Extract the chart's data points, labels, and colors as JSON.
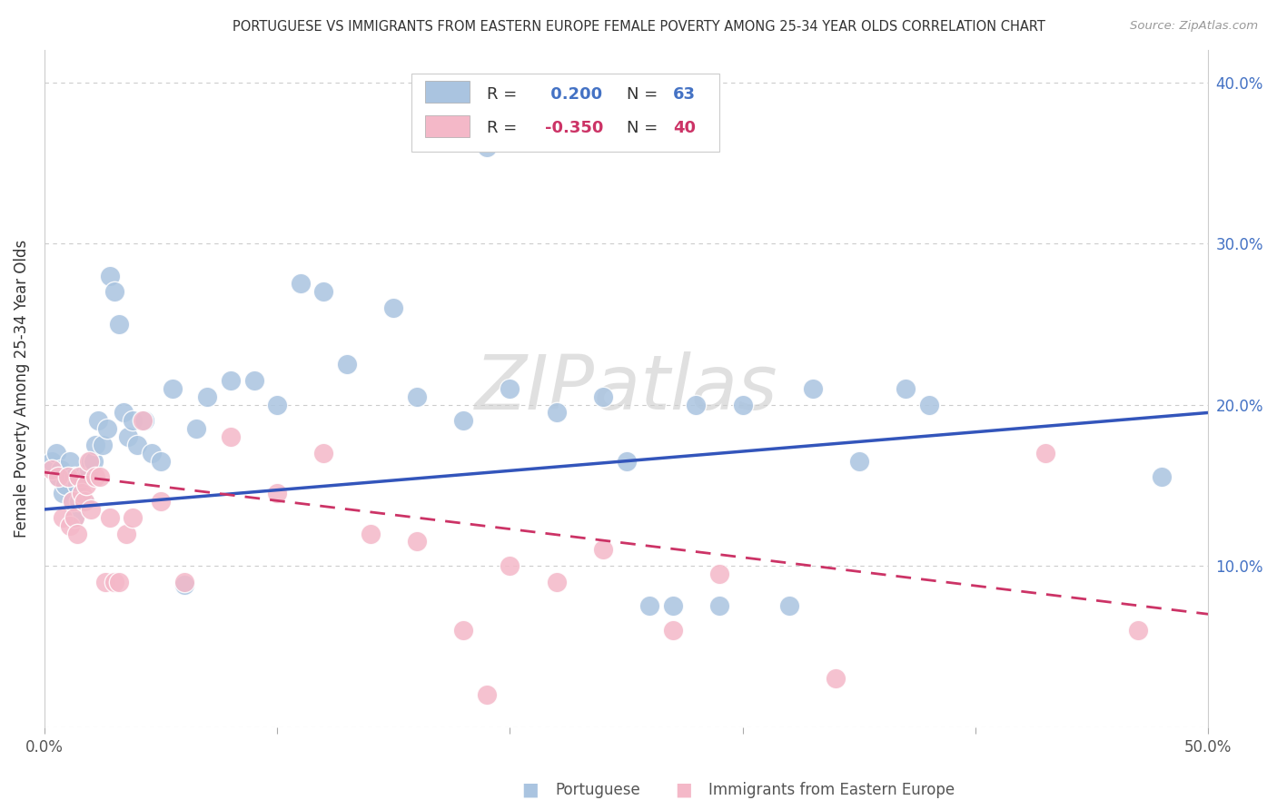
{
  "title": "PORTUGUESE VS IMMIGRANTS FROM EASTERN EUROPE FEMALE POVERTY AMONG 25-34 YEAR OLDS CORRELATION CHART",
  "source": "Source: ZipAtlas.com",
  "ylabel": "Female Poverty Among 25-34 Year Olds",
  "xlim": [
    0.0,
    0.5
  ],
  "ylim": [
    0.0,
    0.42
  ],
  "color_blue": "#aac4e0",
  "color_pink": "#f4b8c8",
  "line_blue": "#3355bb",
  "line_pink": "#cc3366",
  "background": "#ffffff",
  "watermark": "ZIPatlas",
  "blue_line_start": 0.135,
  "blue_line_end": 0.195,
  "pink_line_start": 0.158,
  "pink_line_end": 0.07,
  "portuguese_x": [
    0.003,
    0.005,
    0.006,
    0.007,
    0.008,
    0.009,
    0.01,
    0.011,
    0.012,
    0.013,
    0.013,
    0.014,
    0.015,
    0.015,
    0.016,
    0.017,
    0.018,
    0.019,
    0.02,
    0.021,
    0.022,
    0.023,
    0.025,
    0.027,
    0.028,
    0.03,
    0.032,
    0.034,
    0.036,
    0.038,
    0.04,
    0.043,
    0.046,
    0.05,
    0.055,
    0.06,
    0.065,
    0.07,
    0.08,
    0.09,
    0.1,
    0.11,
    0.12,
    0.13,
    0.15,
    0.16,
    0.18,
    0.19,
    0.2,
    0.22,
    0.24,
    0.25,
    0.26,
    0.27,
    0.28,
    0.29,
    0.3,
    0.32,
    0.33,
    0.35,
    0.37,
    0.38,
    0.48
  ],
  "portuguese_y": [
    0.165,
    0.17,
    0.155,
    0.16,
    0.145,
    0.15,
    0.155,
    0.165,
    0.14,
    0.13,
    0.155,
    0.15,
    0.14,
    0.155,
    0.155,
    0.14,
    0.155,
    0.16,
    0.165,
    0.165,
    0.175,
    0.19,
    0.175,
    0.185,
    0.28,
    0.27,
    0.25,
    0.195,
    0.18,
    0.19,
    0.175,
    0.19,
    0.17,
    0.165,
    0.21,
    0.088,
    0.185,
    0.205,
    0.215,
    0.215,
    0.2,
    0.275,
    0.27,
    0.225,
    0.26,
    0.205,
    0.19,
    0.36,
    0.21,
    0.195,
    0.205,
    0.165,
    0.075,
    0.075,
    0.2,
    0.075,
    0.2,
    0.075,
    0.21,
    0.165,
    0.21,
    0.2,
    0.155
  ],
  "eastern_x": [
    0.003,
    0.006,
    0.008,
    0.01,
    0.011,
    0.012,
    0.013,
    0.014,
    0.015,
    0.016,
    0.017,
    0.018,
    0.019,
    0.02,
    0.022,
    0.024,
    0.026,
    0.028,
    0.03,
    0.032,
    0.035,
    0.038,
    0.042,
    0.05,
    0.06,
    0.08,
    0.1,
    0.12,
    0.14,
    0.16,
    0.18,
    0.19,
    0.2,
    0.22,
    0.24,
    0.27,
    0.29,
    0.34,
    0.43,
    0.47
  ],
  "eastern_y": [
    0.16,
    0.155,
    0.13,
    0.155,
    0.125,
    0.14,
    0.13,
    0.12,
    0.155,
    0.145,
    0.14,
    0.15,
    0.165,
    0.135,
    0.155,
    0.155,
    0.09,
    0.13,
    0.09,
    0.09,
    0.12,
    0.13,
    0.19,
    0.14,
    0.09,
    0.18,
    0.145,
    0.17,
    0.12,
    0.115,
    0.06,
    0.02,
    0.1,
    0.09,
    0.11,
    0.06,
    0.095,
    0.03,
    0.17,
    0.06
  ]
}
